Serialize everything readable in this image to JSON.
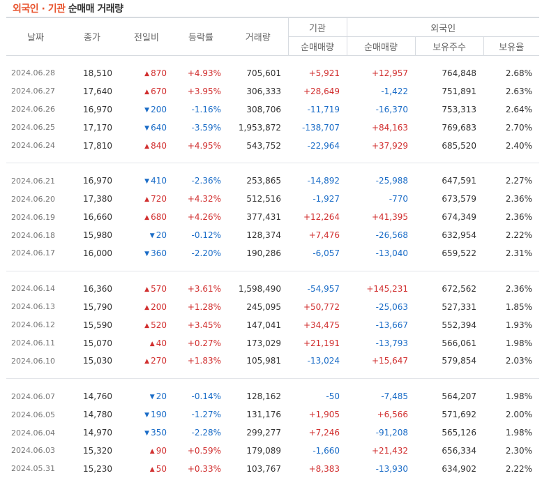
{
  "title": {
    "part1": "외국인",
    "dot": "·",
    "part2": "기관",
    "part3": "순매매",
    "part4": "거래량"
  },
  "headers": {
    "date": "날짜",
    "close": "종가",
    "change": "전일비",
    "rate": "등락률",
    "volume": "거래량",
    "inst_group": "기관",
    "inst_net": "순매매량",
    "foreign_group": "외국인",
    "foreign_net": "순매매량",
    "foreign_hold": "보유주수",
    "foreign_ratio": "보유율"
  },
  "colors": {
    "up": "#d12f2f",
    "down": "#1a6cc7",
    "accent": "#e8542e"
  },
  "groups": [
    [
      {
        "date": "2024.06.28",
        "close": "18,510",
        "dir": "up",
        "change": "870",
        "rate": "+4.93%",
        "volume": "705,601",
        "inst": "+5,921",
        "foreign": "+12,957",
        "hold": "764,848",
        "ratio": "2.68%"
      },
      {
        "date": "2024.06.27",
        "close": "17,640",
        "dir": "up",
        "change": "670",
        "rate": "+3.95%",
        "volume": "306,333",
        "inst": "+28,649",
        "foreign": "-1,422",
        "hold": "751,891",
        "ratio": "2.63%"
      },
      {
        "date": "2024.06.26",
        "close": "16,970",
        "dir": "down",
        "change": "200",
        "rate": "-1.16%",
        "volume": "308,706",
        "inst": "-11,719",
        "foreign": "-16,370",
        "hold": "753,313",
        "ratio": "2.64%"
      },
      {
        "date": "2024.06.25",
        "close": "17,170",
        "dir": "down",
        "change": "640",
        "rate": "-3.59%",
        "volume": "1,953,872",
        "inst": "-138,707",
        "foreign": "+84,163",
        "hold": "769,683",
        "ratio": "2.70%"
      },
      {
        "date": "2024.06.24",
        "close": "17,810",
        "dir": "up",
        "change": "840",
        "rate": "+4.95%",
        "volume": "543,752",
        "inst": "-22,964",
        "foreign": "+37,929",
        "hold": "685,520",
        "ratio": "2.40%"
      }
    ],
    [
      {
        "date": "2024.06.21",
        "close": "16,970",
        "dir": "down",
        "change": "410",
        "rate": "-2.36%",
        "volume": "253,865",
        "inst": "-14,892",
        "foreign": "-25,988",
        "hold": "647,591",
        "ratio": "2.27%"
      },
      {
        "date": "2024.06.20",
        "close": "17,380",
        "dir": "up",
        "change": "720",
        "rate": "+4.32%",
        "volume": "512,516",
        "inst": "-1,927",
        "foreign": "-770",
        "hold": "673,579",
        "ratio": "2.36%"
      },
      {
        "date": "2024.06.19",
        "close": "16,660",
        "dir": "up",
        "change": "680",
        "rate": "+4.26%",
        "volume": "377,431",
        "inst": "+12,264",
        "foreign": "+41,395",
        "hold": "674,349",
        "ratio": "2.36%"
      },
      {
        "date": "2024.06.18",
        "close": "15,980",
        "dir": "down",
        "change": "20",
        "rate": "-0.12%",
        "volume": "128,374",
        "inst": "+7,476",
        "foreign": "-26,568",
        "hold": "632,954",
        "ratio": "2.22%"
      },
      {
        "date": "2024.06.17",
        "close": "16,000",
        "dir": "down",
        "change": "360",
        "rate": "-2.20%",
        "volume": "190,286",
        "inst": "-6,057",
        "foreign": "-13,040",
        "hold": "659,522",
        "ratio": "2.31%"
      }
    ],
    [
      {
        "date": "2024.06.14",
        "close": "16,360",
        "dir": "up",
        "change": "570",
        "rate": "+3.61%",
        "volume": "1,598,490",
        "inst": "-54,957",
        "foreign": "+145,231",
        "hold": "672,562",
        "ratio": "2.36%"
      },
      {
        "date": "2024.06.13",
        "close": "15,790",
        "dir": "up",
        "change": "200",
        "rate": "+1.28%",
        "volume": "245,095",
        "inst": "+50,772",
        "foreign": "-25,063",
        "hold": "527,331",
        "ratio": "1.85%"
      },
      {
        "date": "2024.06.12",
        "close": "15,590",
        "dir": "up",
        "change": "520",
        "rate": "+3.45%",
        "volume": "147,041",
        "inst": "+34,475",
        "foreign": "-13,667",
        "hold": "552,394",
        "ratio": "1.93%"
      },
      {
        "date": "2024.06.11",
        "close": "15,070",
        "dir": "up",
        "change": "40",
        "rate": "+0.27%",
        "volume": "173,029",
        "inst": "+21,191",
        "foreign": "-13,793",
        "hold": "566,061",
        "ratio": "1.98%"
      },
      {
        "date": "2024.06.10",
        "close": "15,030",
        "dir": "up",
        "change": "270",
        "rate": "+1.83%",
        "volume": "105,981",
        "inst": "-13,024",
        "foreign": "+15,647",
        "hold": "579,854",
        "ratio": "2.03%"
      }
    ],
    [
      {
        "date": "2024.06.07",
        "close": "14,760",
        "dir": "down",
        "change": "20",
        "rate": "-0.14%",
        "volume": "128,162",
        "inst": "-50",
        "foreign": "-7,485",
        "hold": "564,207",
        "ratio": "1.98%"
      },
      {
        "date": "2024.06.05",
        "close": "14,780",
        "dir": "down",
        "change": "190",
        "rate": "-1.27%",
        "volume": "131,176",
        "inst": "+1,905",
        "foreign": "+6,566",
        "hold": "571,692",
        "ratio": "2.00%"
      },
      {
        "date": "2024.06.04",
        "close": "14,970",
        "dir": "down",
        "change": "350",
        "rate": "-2.28%",
        "volume": "299,277",
        "inst": "+7,246",
        "foreign": "-91,208",
        "hold": "565,126",
        "ratio": "1.98%"
      },
      {
        "date": "2024.06.03",
        "close": "15,320",
        "dir": "up",
        "change": "90",
        "rate": "+0.59%",
        "volume": "179,089",
        "inst": "-1,660",
        "foreign": "+21,432",
        "hold": "656,334",
        "ratio": "2.30%"
      },
      {
        "date": "2024.05.31",
        "close": "15,230",
        "dir": "up",
        "change": "50",
        "rate": "+0.33%",
        "volume": "103,767",
        "inst": "+8,383",
        "foreign": "-13,930",
        "hold": "634,902",
        "ratio": "2.22%"
      }
    ]
  ]
}
